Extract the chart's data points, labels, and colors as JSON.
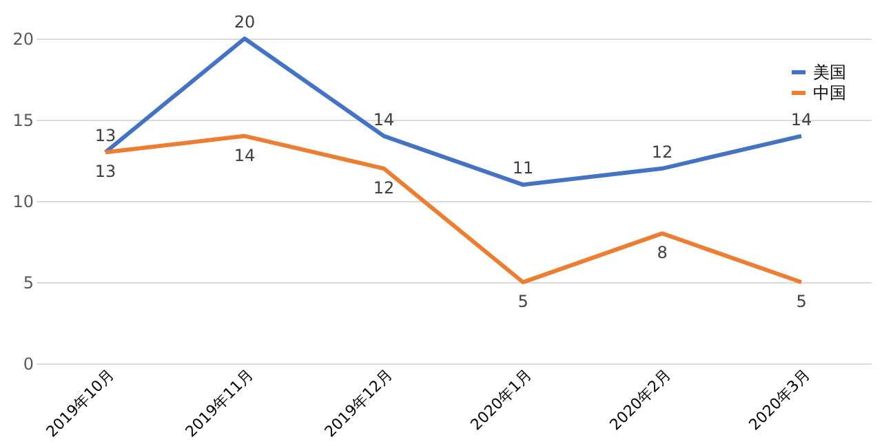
{
  "chart_data": {
    "type": "line",
    "categories": [
      "2019年10月",
      "2019年11月",
      "2019年12月",
      "2020年1月",
      "2020年2月",
      "2020年3月"
    ],
    "series": [
      {
        "name": "美国",
        "color": "#4472c4",
        "values": [
          13,
          20,
          14,
          11,
          12,
          14
        ]
      },
      {
        "name": "中国",
        "color": "#ed7d31",
        "values": [
          13,
          14,
          12,
          5,
          8,
          5
        ]
      }
    ],
    "ylim": [
      0,
      20
    ],
    "yticks": [
      0,
      5,
      10,
      15,
      20
    ],
    "grid": "y",
    "legend": "top right",
    "data_labels": true,
    "marker": "none",
    "line_style": "solid"
  }
}
